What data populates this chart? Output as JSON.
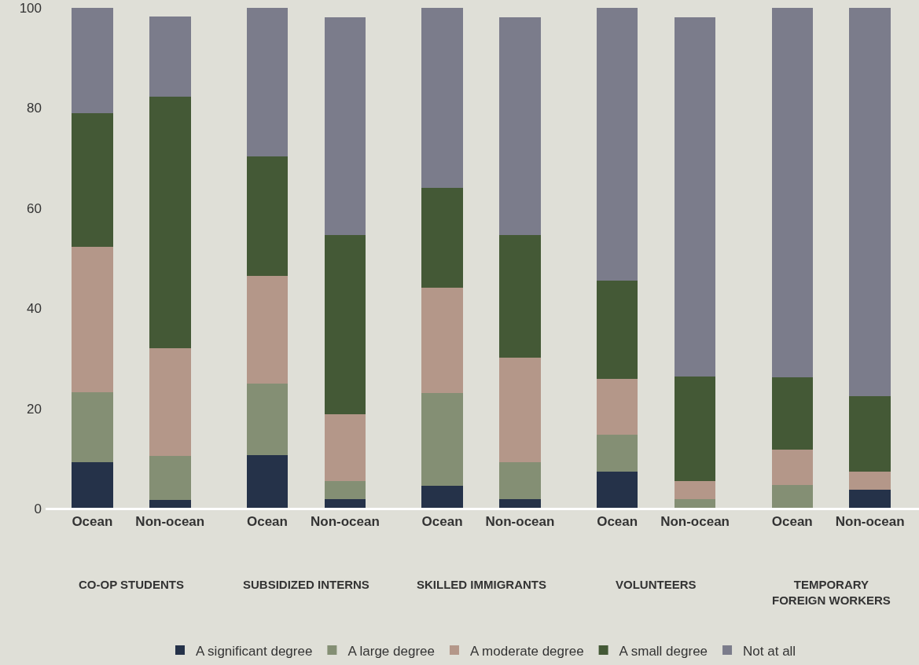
{
  "chart_data": {
    "type": "bar",
    "stacked": true,
    "categories": [
      "Ocean",
      "Non-ocean",
      "Ocean",
      "Non-ocean",
      "Ocean",
      "Non-ocean",
      "Ocean",
      "Non-ocean",
      "Ocean",
      "Non-ocean"
    ],
    "series": [
      {
        "name": "A significant degree",
        "color": "#253249",
        "values": [
          9.2,
          1.7,
          10.7,
          1.9,
          4.6,
          1.9,
          7.4,
          0,
          0,
          3.7
        ]
      },
      {
        "name": "A large degree",
        "color": "#848f74",
        "values": [
          14.0,
          8.8,
          14.2,
          3.6,
          18.5,
          7.4,
          7.3,
          1.9,
          4.7,
          0
        ]
      },
      {
        "name": "A moderate degree",
        "color": "#b49789",
        "values": [
          29.1,
          21.6,
          21.5,
          13.3,
          21.0,
          20.8,
          11.2,
          3.6,
          7.1,
          3.7
        ]
      },
      {
        "name": "A small degree",
        "color": "#445936",
        "values": [
          26.7,
          50.1,
          23.9,
          35.9,
          19.9,
          24.6,
          19.7,
          20.8,
          14.4,
          15.1
        ]
      },
      {
        "name": "Not at all",
        "color": "#7b7c8b",
        "values": [
          21.0,
          16.1,
          29.7,
          43.4,
          36.0,
          43.4,
          54.4,
          71.8,
          73.8,
          77.5
        ]
      }
    ],
    "annotations": [
      "CO-OP STUDENTS",
      "SUBSIDIZED INTERNS",
      "SKILLED IMMIGRANTS",
      "VOLUNTEERS",
      "TEMPORARY FOREIGN WORKERS"
    ],
    "ylim": [
      0,
      100
    ],
    "yticks": [
      0,
      20,
      40,
      60,
      80,
      100
    ],
    "grid": false,
    "legend": "bottom"
  }
}
